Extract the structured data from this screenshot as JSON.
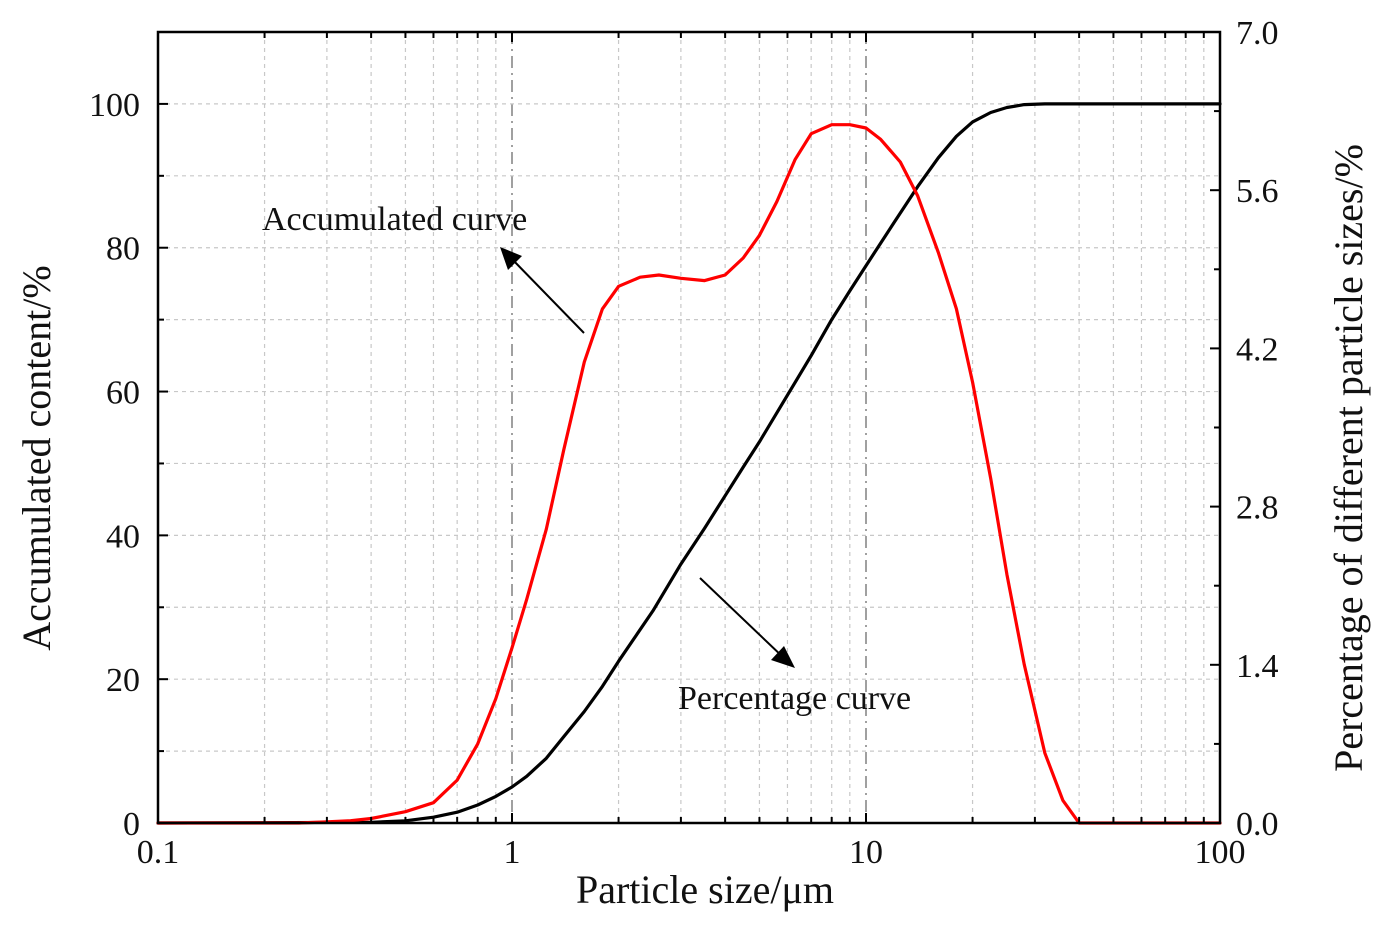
{
  "chart_data": {
    "type": "line",
    "xscale": "log",
    "xlim": [
      0.1,
      100
    ],
    "ylim_left": [
      0,
      110
    ],
    "ylim_right": [
      0,
      7.0
    ],
    "xlabel": "Particle size/μm",
    "ylabel_left": "Accumulated content/%",
    "ylabel_right": "Percentage of different particle sizes/%",
    "x_ticks": [
      "0.1",
      "1",
      "10",
      "100"
    ],
    "y_ticks_left": [
      "0",
      "20",
      "40",
      "60",
      "80",
      "100"
    ],
    "y_ticks_right": [
      "0.0",
      "1.4",
      "2.8",
      "4.2",
      "5.6",
      "7.0"
    ],
    "annotations": {
      "accumulated": "Accumulated curve",
      "percentage": "Percentage curve"
    },
    "series": [
      {
        "name": "Accumulated curve",
        "axis": "left",
        "color": "#000000",
        "x": [
          0.1,
          0.4,
          0.5,
          0.6,
          0.7,
          0.8,
          0.9,
          1.0,
          1.1,
          1.25,
          1.4,
          1.6,
          1.8,
          2.0,
          2.5,
          3.0,
          3.5,
          4.0,
          4.5,
          5.0,
          6.0,
          7.0,
          8.0,
          9.0,
          10.0,
          12.0,
          14.0,
          16.0,
          18.0,
          20.0,
          22.5,
          25.0,
          28.0,
          32.0,
          36.0,
          100.0
        ],
        "y": [
          0,
          0.1,
          0.3,
          0.8,
          1.5,
          2.5,
          3.7,
          5.0,
          6.5,
          9.0,
          12.0,
          15.5,
          19.0,
          22.5,
          29.5,
          36.0,
          41.0,
          45.5,
          49.5,
          53.0,
          59.5,
          65.0,
          70.0,
          74.0,
          77.5,
          83.5,
          88.5,
          92.5,
          95.5,
          97.5,
          98.8,
          99.5,
          99.9,
          100,
          100,
          100
        ]
      },
      {
        "name": "Percentage curve",
        "axis": "right",
        "color": "#ff0000",
        "x": [
          0.1,
          0.25,
          0.3,
          0.35,
          0.4,
          0.5,
          0.6,
          0.7,
          0.8,
          0.9,
          1.0,
          1.1,
          1.25,
          1.4,
          1.6,
          1.8,
          2.0,
          2.3,
          2.6,
          3.0,
          3.5,
          4.0,
          4.5,
          5.0,
          5.6,
          6.3,
          7.0,
          8.0,
          9.0,
          10.0,
          11.0,
          12.5,
          14.0,
          16.0,
          18.0,
          20.0,
          22.5,
          25.0,
          28.0,
          32.0,
          36.0,
          40.0,
          100.0
        ],
        "y": [
          0.0,
          0.0,
          0.01,
          0.02,
          0.04,
          0.1,
          0.18,
          0.38,
          0.7,
          1.1,
          1.55,
          1.98,
          2.6,
          3.3,
          4.08,
          4.55,
          4.75,
          4.83,
          4.85,
          4.82,
          4.8,
          4.85,
          5.0,
          5.2,
          5.5,
          5.87,
          6.1,
          6.18,
          6.18,
          6.15,
          6.05,
          5.85,
          5.55,
          5.05,
          4.55,
          3.9,
          3.05,
          2.2,
          1.4,
          0.62,
          0.2,
          0.0,
          0.0
        ]
      }
    ]
  }
}
